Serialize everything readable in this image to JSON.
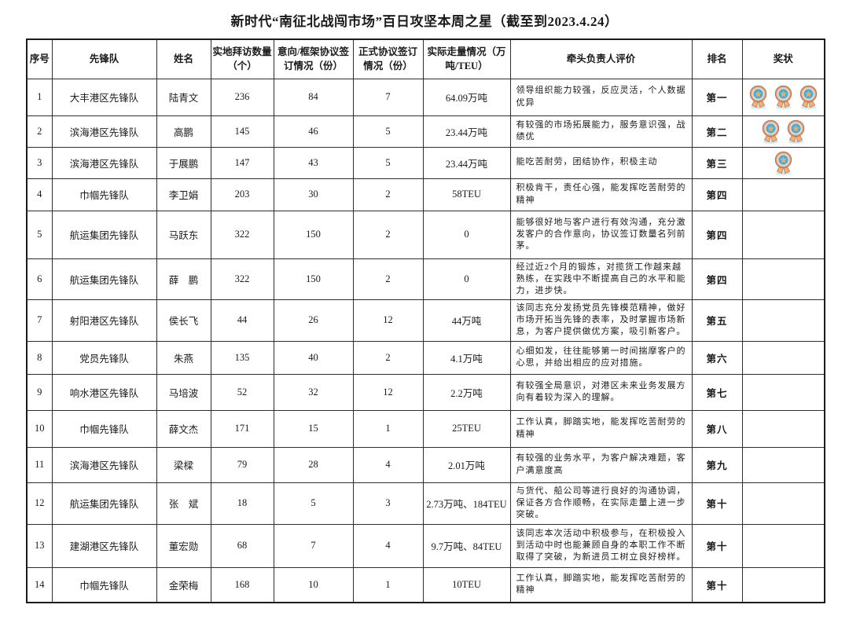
{
  "page": {
    "title": "新时代“南征北战闯市场”百日攻坚本周之星（截至到2023.4.24）"
  },
  "table": {
    "headers": [
      "序号",
      "先锋队",
      "姓名",
      "实地拜访数量（个）",
      "意向/框架协议签订情况（份）",
      "正式协议签订情况（份）",
      "实际走量情况（万吨/TEU）",
      "牵头负责人评价",
      "排名",
      "奖状"
    ],
    "rows": [
      {
        "no": "1",
        "team": "大丰港区先锋队",
        "name": "陆青文",
        "visits": "236",
        "intent": "84",
        "formal": "7",
        "volume": "64.09万吨",
        "evaluation": "领导组织能力较强，反应灵活，个人数据优异",
        "rank": "第一",
        "medals": 3
      },
      {
        "no": "2",
        "team": "滨海港区先锋队",
        "name": "高鹏",
        "visits": "145",
        "intent": "46",
        "formal": "5",
        "volume": "23.44万吨",
        "evaluation": "有较强的市场拓展能力，服务意识强，战绩优",
        "rank": "第二",
        "medals": 2
      },
      {
        "no": "3",
        "team": "滨海港区先锋队",
        "name": "于展鹏",
        "visits": "147",
        "intent": "43",
        "formal": "5",
        "volume": "23.44万吨",
        "evaluation": "能吃苦耐劳，团结协作，积极主动",
        "rank": "第三",
        "medals": 1
      },
      {
        "no": "4",
        "team": "巾帼先锋队",
        "name": "李卫娟",
        "visits": "203",
        "intent": "30",
        "formal": "2",
        "volume": "58TEU",
        "evaluation": "积极肯干，责任心强，能发挥吃苦耐劳的精神",
        "rank": "第四",
        "medals": 0
      },
      {
        "no": "5",
        "team": "航运集团先锋队",
        "name": "马跃东",
        "visits": "322",
        "intent": "150",
        "formal": "2",
        "volume": "0",
        "evaluation": "能够很好地与客户进行有效沟通，充分激发客户的合作意向，协议签订数量名列前茅。",
        "rank": "第四",
        "medals": 0
      },
      {
        "no": "6",
        "team": "航运集团先锋队",
        "name": "薛　鹏",
        "visits": "322",
        "intent": "150",
        "formal": "2",
        "volume": "0",
        "evaluation": "经过近2个月的锻炼，对揽货工作越来越熟练，在实践中不断提高自己的水平和能力，进步快。",
        "rank": "第四",
        "medals": 0
      },
      {
        "no": "7",
        "team": "射阳港区先锋队",
        "name": "侯长飞",
        "visits": "44",
        "intent": "26",
        "formal": "12",
        "volume": "44万吨",
        "evaluation": "该同志充分发扬党员先锋模范精神，做好市场开拓当先锋的表率，及时掌握市场新息，为客户提供做优方案，吸引新客户。",
        "rank": "第五",
        "medals": 0
      },
      {
        "no": "8",
        "team": "党员先锋队",
        "name": "朱燕",
        "visits": "135",
        "intent": "40",
        "formal": "2",
        "volume": "4.1万吨",
        "evaluation": "心细如发，往往能够第一时间揣摩客户的心思，并给出相应的应对措施。",
        "rank": "第六",
        "medals": 0
      },
      {
        "no": "9",
        "team": "响水港区先锋队",
        "name": "马培波",
        "visits": "52",
        "intent": "32",
        "formal": "12",
        "volume": "2.2万吨",
        "evaluation": "有较强全局意识，对港区未来业务发展方向有着较为深入的理解。",
        "rank": "第七",
        "medals": 0
      },
      {
        "no": "10",
        "team": "巾帼先锋队",
        "name": "薛文杰",
        "visits": "171",
        "intent": "15",
        "formal": "1",
        "volume": "25TEU",
        "evaluation": "工作认真，脚踏实地，能发挥吃苦耐劳的精神",
        "rank": "第八",
        "medals": 0
      },
      {
        "no": "11",
        "team": "滨海港区先锋队",
        "name": "梁樑",
        "visits": "79",
        "intent": "28",
        "formal": "4",
        "volume": "2.01万吨",
        "evaluation": "有较强的业务水平，为客户解决难题，客户满意度高",
        "rank": "第九",
        "medals": 0
      },
      {
        "no": "12",
        "team": "航运集团先锋队",
        "name": "张　斌",
        "visits": "18",
        "intent": "5",
        "formal": "3",
        "volume": "2.73万吨、184TEU",
        "evaluation": "与货代、船公司等进行良好的沟通协调，保证各方合作顺畅，在实际走量上进一步突破。",
        "rank": "第十",
        "medals": 0
      },
      {
        "no": "13",
        "team": "建湖港区先锋队",
        "name": "董宏勋",
        "visits": "68",
        "intent": "7",
        "formal": "4",
        "volume": "9.7万吨、84TEU",
        "evaluation": "该同志本次活动中积极参与，在积极投入到活动中时也能兼顾自身的本职工作不断取得了突破，为新进员工树立良好榜样。",
        "rank": "第十",
        "medals": 0
      },
      {
        "no": "14",
        "team": "巾帼先锋队",
        "name": "金荣梅",
        "visits": "168",
        "intent": "10",
        "formal": "1",
        "volume": "10TEU",
        "evaluation": "工作认真，脚踏实地，能发挥吃苦耐劳的精神",
        "rank": "第十",
        "medals": 0
      }
    ]
  },
  "medal_colors": {
    "ring": "#f2b083",
    "ring_outline": "#a97c6b",
    "inner": "#38b4ea",
    "inner_edge": "#f9e9d9",
    "star": "#f2a95f",
    "ribbon": "#f4b173",
    "ribbon_outline": "#bd8260",
    "shadow": "#c3ecfa"
  }
}
